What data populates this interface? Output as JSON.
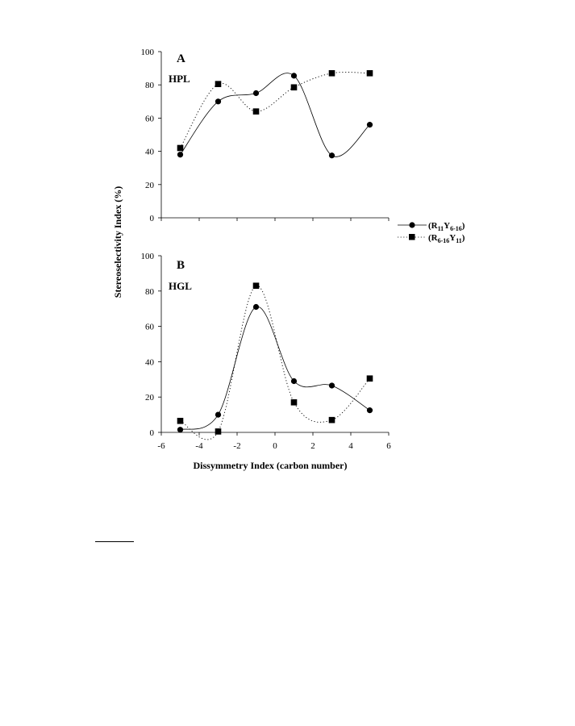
{
  "chart_data": [
    {
      "type": "line",
      "panel_label": "A",
      "panel_name": "HPL",
      "ylim": [
        0,
        100
      ],
      "y_ticks": [
        0,
        20,
        40,
        60,
        80,
        100
      ],
      "xlim": [
        -6,
        6
      ],
      "grid": false,
      "series": [
        {
          "name": "(R11Y6-16)",
          "marker": "circle",
          "line": "solid",
          "x": [
            -5,
            -3,
            -1,
            1,
            3,
            5
          ],
          "y": [
            38,
            70,
            75,
            85.5,
            37.5,
            56
          ]
        },
        {
          "name": "(R6-16Y11)",
          "marker": "square",
          "line": "dotted",
          "x": [
            -5,
            -3,
            -1,
            1,
            3,
            5
          ],
          "y": [
            42,
            80.5,
            64,
            78.5,
            87,
            87
          ]
        }
      ]
    },
    {
      "type": "line",
      "panel_label": "B",
      "panel_name": "HGL",
      "ylim": [
        0,
        100
      ],
      "y_ticks": [
        0,
        20,
        40,
        60,
        80,
        100
      ],
      "xlim": [
        -6,
        6
      ],
      "x_ticks": [
        -6,
        -4,
        -2,
        0,
        2,
        4,
        6
      ],
      "xlabel": "Dissymmetry Index (carbon number)",
      "grid": false,
      "series": [
        {
          "name": "(R11Y6-16)",
          "marker": "circle",
          "line": "solid",
          "x": [
            -5,
            -3,
            -1,
            1,
            3,
            5
          ],
          "y": [
            1.5,
            10,
            71,
            29,
            26.5,
            12.5
          ]
        },
        {
          "name": "(R6-16Y11)",
          "marker": "square",
          "line": "dotted",
          "x": [
            -5,
            -3,
            -1,
            1,
            3,
            5
          ],
          "y": [
            6.5,
            0.5,
            83,
            17,
            7,
            30.5
          ]
        }
      ]
    }
  ],
  "shared_ylabel": "Stereoselectivity Index (%)",
  "legend": {
    "placement": "right",
    "entries": [
      {
        "main": "(R",
        "sub1": "11",
        "mid": "Y",
        "sub2": "6-16",
        "end": ")"
      },
      {
        "main": "(R",
        "sub1": "6-16",
        "mid": "Y",
        "sub2": "11",
        "end": ")"
      }
    ]
  }
}
